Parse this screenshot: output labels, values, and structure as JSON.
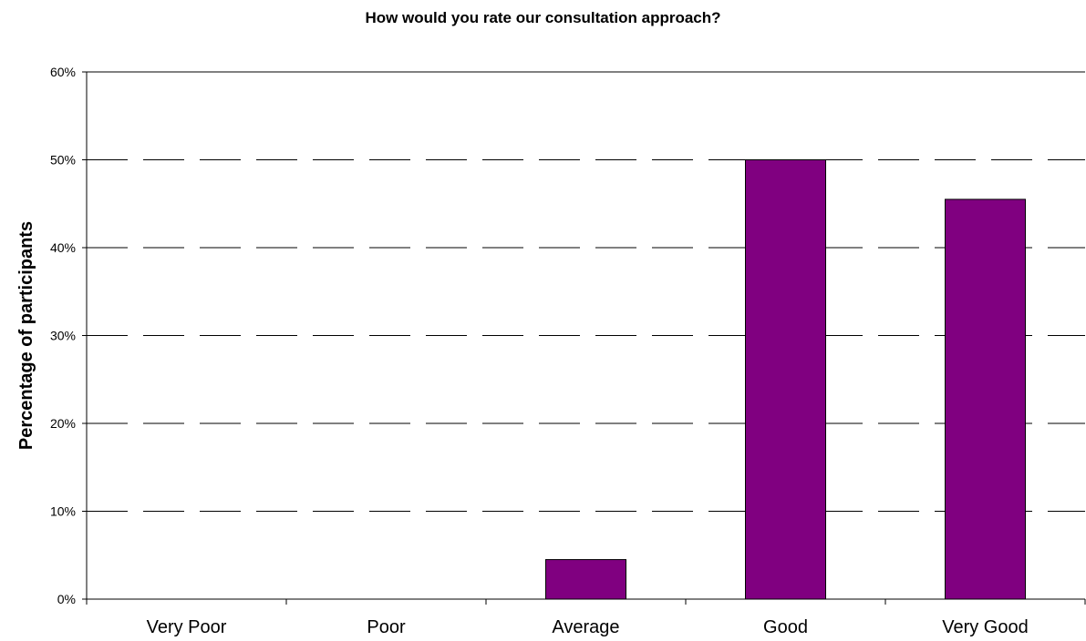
{
  "chart_data": {
    "type": "bar",
    "title": "How would you rate our consultation approach?",
    "xlabel": "",
    "ylabel": "Percentage of participants",
    "categories": [
      "Very Poor",
      "Poor",
      "Average",
      "Good",
      "Very Good"
    ],
    "values": [
      0,
      0,
      4.5,
      50,
      45.5
    ],
    "ylim": [
      0,
      60
    ],
    "yticks": [
      0,
      10,
      20,
      30,
      40,
      50,
      60
    ],
    "ytick_labels": [
      "0%",
      "10%",
      "20%",
      "30%",
      "40%",
      "50%",
      "60%"
    ],
    "grid": "dashed horizontal",
    "legend": "none",
    "colors": {
      "bar_fill": "#800080",
      "bar_stroke": "#000000",
      "axis": "#000000",
      "grid": "#000000"
    }
  }
}
